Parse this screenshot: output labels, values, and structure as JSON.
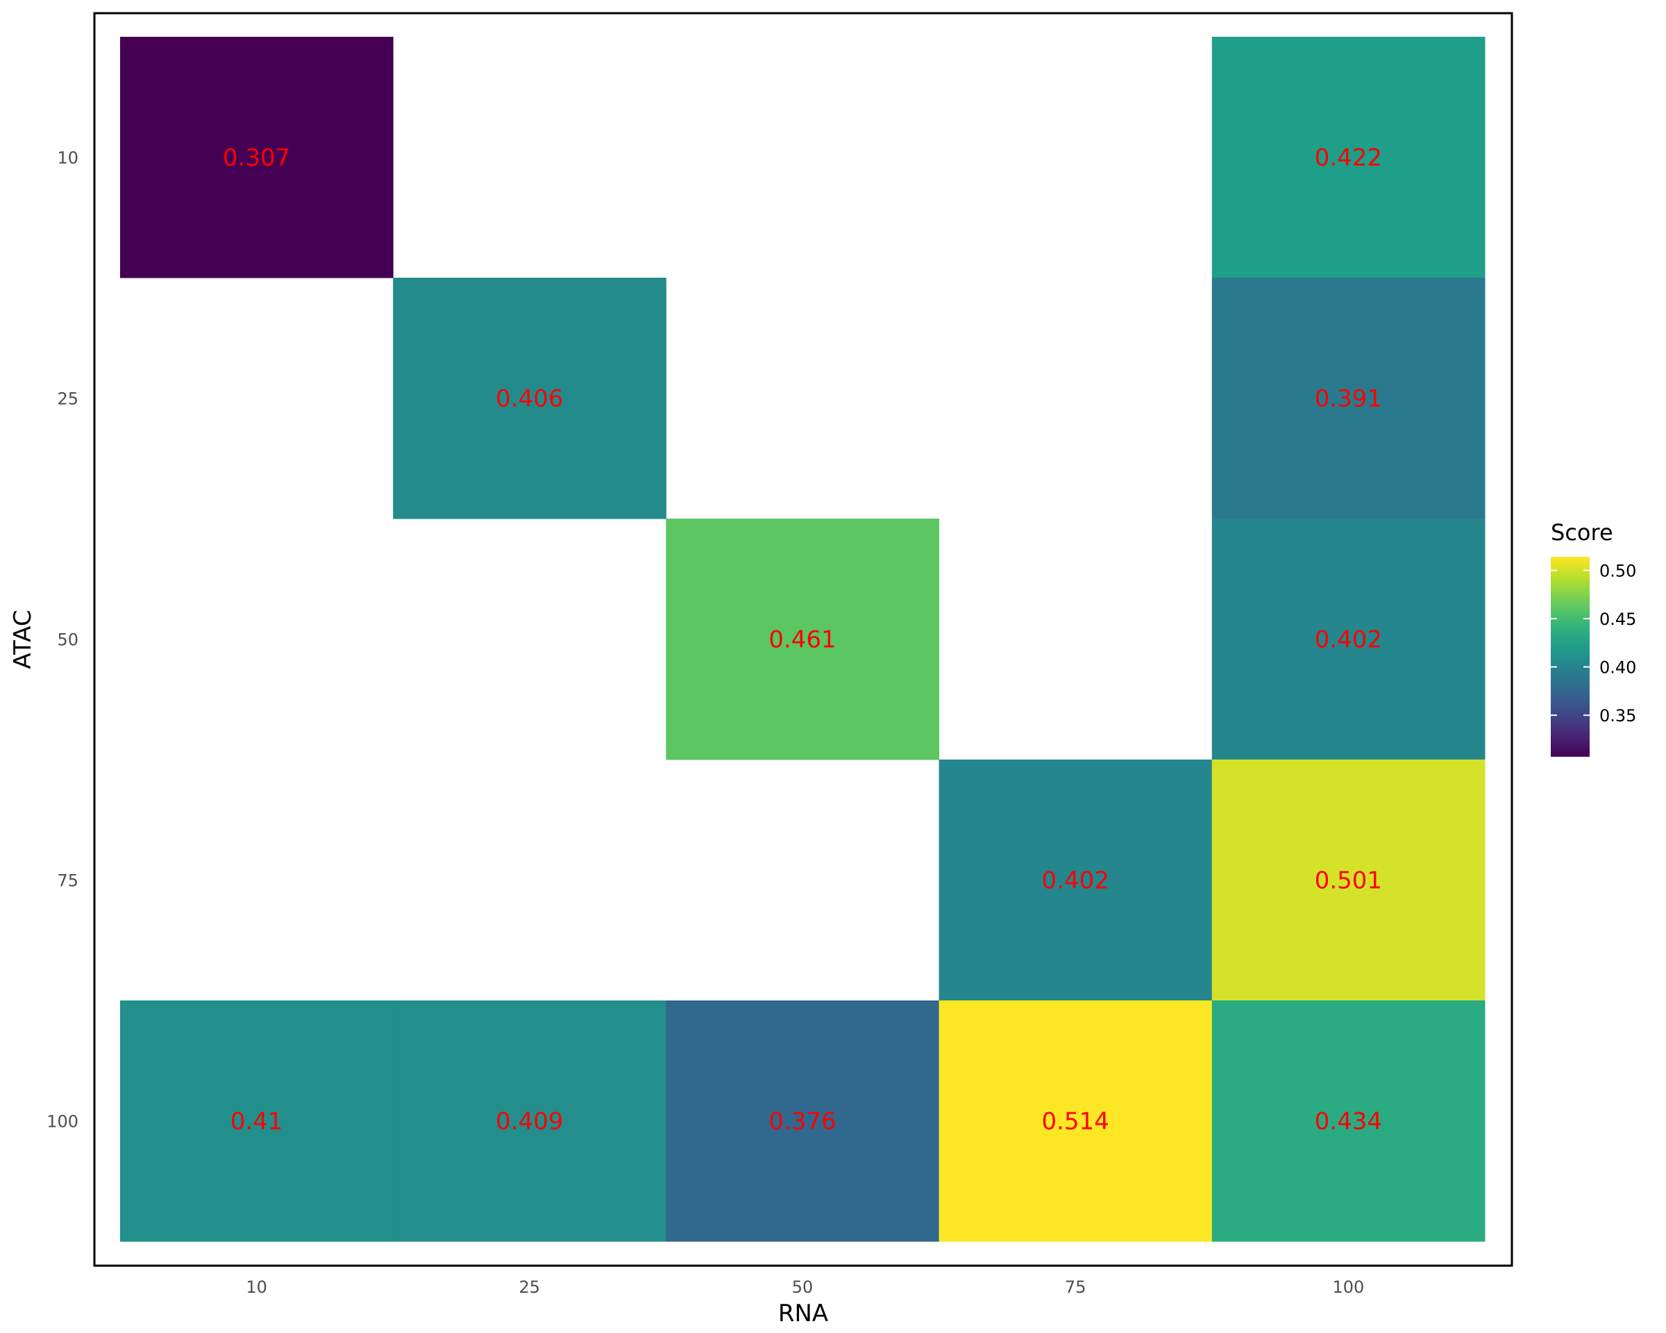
{
  "chart_data": {
    "type": "heatmap",
    "xlabel": "RNA",
    "ylabel": "ATAC",
    "x_categories": [
      "10",
      "25",
      "50",
      "75",
      "100"
    ],
    "y_categories": [
      "10",
      "25",
      "50",
      "75",
      "100"
    ],
    "y_order": "top-to-bottom",
    "cells": [
      {
        "x": "10",
        "y": "10",
        "value": 0.307,
        "label": "0.307"
      },
      {
        "x": "100",
        "y": "10",
        "value": 0.422,
        "label": "0.422"
      },
      {
        "x": "25",
        "y": "25",
        "value": 0.406,
        "label": "0.406"
      },
      {
        "x": "100",
        "y": "25",
        "value": 0.391,
        "label": "0.391"
      },
      {
        "x": "50",
        "y": "50",
        "value": 0.461,
        "label": "0.461"
      },
      {
        "x": "100",
        "y": "50",
        "value": 0.402,
        "label": "0.402"
      },
      {
        "x": "75",
        "y": "75",
        "value": 0.402,
        "label": "0.402"
      },
      {
        "x": "100",
        "y": "75",
        "value": 0.501,
        "label": "0.501"
      },
      {
        "x": "10",
        "y": "100",
        "value": 0.41,
        "label": "0.41"
      },
      {
        "x": "25",
        "y": "100",
        "value": 0.409,
        "label": "0.409"
      },
      {
        "x": "50",
        "y": "100",
        "value": 0.376,
        "label": "0.376"
      },
      {
        "x": "75",
        "y": "100",
        "value": 0.514,
        "label": "0.514"
      },
      {
        "x": "100",
        "y": "100",
        "value": 0.434,
        "label": "0.434"
      }
    ],
    "colorscale": "viridis",
    "color_range": [
      0.307,
      0.514
    ],
    "cell_label_color": "#ff0000",
    "panel_border": true,
    "grid": false,
    "legend": {
      "title": "Score",
      "position": "right",
      "ticks": [
        0.35,
        0.4,
        0.45,
        0.5
      ],
      "tick_labels": [
        "0.35",
        "0.40",
        "0.45",
        "0.50"
      ]
    }
  }
}
